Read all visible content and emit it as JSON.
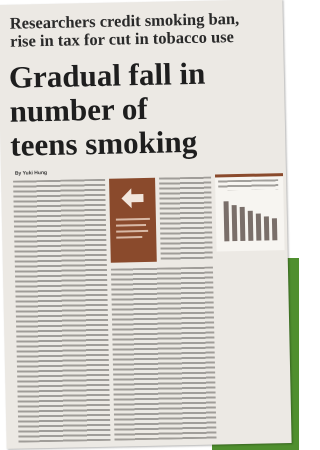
{
  "header": {
    "kicker": "Researchers credit smoking ban, rise in tax for cut in tobacco use",
    "title": "Gradual fall in number of teens smoking"
  },
  "byline": "By Yuki Hung"
}
